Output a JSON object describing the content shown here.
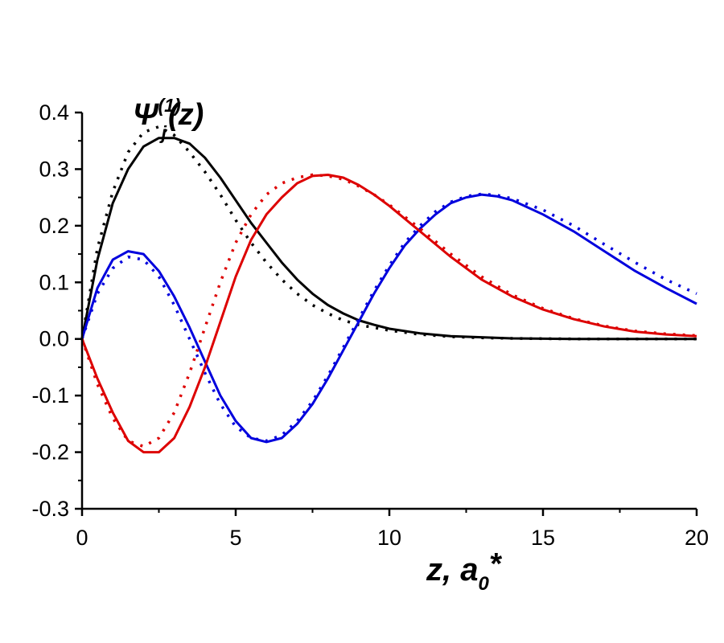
{
  "chart_data": {
    "type": "line",
    "title": "",
    "ylabel": {
      "main": "Ψ",
      "sup": "(1)",
      "sub": "j",
      "tail": "(z)"
    },
    "xlabel": {
      "main": "z, a",
      "sub": "0",
      "sup": "*"
    },
    "xlim": [
      0,
      20
    ],
    "ylim": [
      -0.3,
      0.4
    ],
    "x_ticks": [
      0,
      5,
      10,
      15,
      20
    ],
    "x_tick_labels": [
      "0",
      "5",
      "10",
      "15",
      "20"
    ],
    "y_ticks": [
      -0.3,
      -0.2,
      -0.1,
      0.0,
      0.1,
      0.2,
      0.3,
      0.4
    ],
    "y_tick_labels": [
      "-0.3",
      "-0.2",
      "-0.1",
      "0.0",
      "0.1",
      "0.2",
      "0.3",
      "0.4"
    ],
    "grid": false,
    "legend": "none",
    "series": [
      {
        "color": "#000000",
        "style": "solid",
        "points": [
          [
            0,
            0
          ],
          [
            0.5,
            0.14
          ],
          [
            1,
            0.24
          ],
          [
            1.5,
            0.3
          ],
          [
            2,
            0.34
          ],
          [
            2.5,
            0.355
          ],
          [
            3,
            0.355
          ],
          [
            3.5,
            0.345
          ],
          [
            4,
            0.32
          ],
          [
            4.5,
            0.285
          ],
          [
            5,
            0.245
          ],
          [
            5.5,
            0.205
          ],
          [
            6,
            0.17
          ],
          [
            6.5,
            0.135
          ],
          [
            7,
            0.105
          ],
          [
            7.5,
            0.08
          ],
          [
            8,
            0.06
          ],
          [
            8.5,
            0.045
          ],
          [
            9,
            0.033
          ],
          [
            9.5,
            0.025
          ],
          [
            10,
            0.018
          ],
          [
            11,
            0.01
          ],
          [
            12,
            0.005
          ],
          [
            13,
            0.003
          ],
          [
            14,
            0.001
          ],
          [
            16,
            0.0
          ],
          [
            20,
            0.0
          ]
        ]
      },
      {
        "color": "#000000",
        "style": "dotted",
        "points": [
          [
            0,
            0
          ],
          [
            0.5,
            0.16
          ],
          [
            1,
            0.26
          ],
          [
            1.5,
            0.33
          ],
          [
            2,
            0.365
          ],
          [
            2.5,
            0.375
          ],
          [
            3,
            0.36
          ],
          [
            3.5,
            0.33
          ],
          [
            4,
            0.295
          ],
          [
            4.5,
            0.255
          ],
          [
            5,
            0.21
          ],
          [
            5.5,
            0.17
          ],
          [
            6,
            0.135
          ],
          [
            6.5,
            0.105
          ],
          [
            7,
            0.08
          ],
          [
            7.5,
            0.06
          ],
          [
            8,
            0.045
          ],
          [
            8.5,
            0.033
          ],
          [
            9,
            0.025
          ],
          [
            10,
            0.015
          ],
          [
            11,
            0.008
          ],
          [
            12,
            0.004
          ],
          [
            13,
            0.002
          ],
          [
            14,
            0.001
          ],
          [
            16,
            0.0
          ],
          [
            20,
            0.0
          ]
        ]
      },
      {
        "color": "#0000dd",
        "style": "solid",
        "points": [
          [
            0,
            0
          ],
          [
            0.5,
            0.09
          ],
          [
            1,
            0.14
          ],
          [
            1.5,
            0.155
          ],
          [
            2,
            0.15
          ],
          [
            2.5,
            0.12
          ],
          [
            3,
            0.075
          ],
          [
            3.5,
            0.02
          ],
          [
            4,
            -0.04
          ],
          [
            4.5,
            -0.1
          ],
          [
            5,
            -0.145
          ],
          [
            5.5,
            -0.175
          ],
          [
            6,
            -0.182
          ],
          [
            6.5,
            -0.175
          ],
          [
            7,
            -0.15
          ],
          [
            7.5,
            -0.115
          ],
          [
            8,
            -0.07
          ],
          [
            8.5,
            -0.02
          ],
          [
            9,
            0.03
          ],
          [
            9.5,
            0.08
          ],
          [
            10,
            0.125
          ],
          [
            10.5,
            0.165
          ],
          [
            11,
            0.195
          ],
          [
            11.5,
            0.22
          ],
          [
            12,
            0.24
          ],
          [
            12.5,
            0.25
          ],
          [
            13,
            0.255
          ],
          [
            13.5,
            0.252
          ],
          [
            14,
            0.245
          ],
          [
            15,
            0.22
          ],
          [
            16,
            0.19
          ],
          [
            17,
            0.155
          ],
          [
            18,
            0.12
          ],
          [
            19,
            0.09
          ],
          [
            20,
            0.062
          ]
        ]
      },
      {
        "color": "#0000dd",
        "style": "dotted",
        "points": [
          [
            0,
            0
          ],
          [
            0.5,
            0.08
          ],
          [
            1,
            0.125
          ],
          [
            1.5,
            0.145
          ],
          [
            2,
            0.14
          ],
          [
            2.5,
            0.11
          ],
          [
            3,
            0.06
          ],
          [
            3.5,
            0.0
          ],
          [
            4,
            -0.06
          ],
          [
            4.5,
            -0.115
          ],
          [
            5,
            -0.155
          ],
          [
            5.5,
            -0.175
          ],
          [
            6,
            -0.18
          ],
          [
            6.5,
            -0.17
          ],
          [
            7,
            -0.145
          ],
          [
            7.5,
            -0.11
          ],
          [
            8,
            -0.065
          ],
          [
            8.5,
            -0.015
          ],
          [
            9,
            0.035
          ],
          [
            9.5,
            0.085
          ],
          [
            10,
            0.13
          ],
          [
            10.5,
            0.17
          ],
          [
            11,
            0.2
          ],
          [
            11.5,
            0.225
          ],
          [
            12,
            0.242
          ],
          [
            12.5,
            0.252
          ],
          [
            13,
            0.256
          ],
          [
            13.5,
            0.254
          ],
          [
            14,
            0.248
          ],
          [
            15,
            0.228
          ],
          [
            16,
            0.2
          ],
          [
            17,
            0.167
          ],
          [
            18,
            0.135
          ],
          [
            19,
            0.105
          ],
          [
            20,
            0.08
          ]
        ]
      },
      {
        "color": "#dd0000",
        "style": "solid",
        "points": [
          [
            0,
            0
          ],
          [
            0.5,
            -0.07
          ],
          [
            1,
            -0.13
          ],
          [
            1.5,
            -0.18
          ],
          [
            2,
            -0.2
          ],
          [
            2.5,
            -0.2
          ],
          [
            3,
            -0.175
          ],
          [
            3.5,
            -0.12
          ],
          [
            4,
            -0.05
          ],
          [
            4.5,
            0.03
          ],
          [
            5,
            0.11
          ],
          [
            5.5,
            0.175
          ],
          [
            6,
            0.22
          ],
          [
            6.5,
            0.25
          ],
          [
            7,
            0.275
          ],
          [
            7.5,
            0.288
          ],
          [
            8,
            0.29
          ],
          [
            8.5,
            0.285
          ],
          [
            9,
            0.272
          ],
          [
            9.5,
            0.255
          ],
          [
            10,
            0.235
          ],
          [
            11,
            0.19
          ],
          [
            12,
            0.145
          ],
          [
            13,
            0.105
          ],
          [
            14,
            0.075
          ],
          [
            15,
            0.052
          ],
          [
            16,
            0.035
          ],
          [
            17,
            0.022
          ],
          [
            18,
            0.013
          ],
          [
            19,
            0.008
          ],
          [
            20,
            0.005
          ]
        ]
      },
      {
        "color": "#dd0000",
        "style": "dotted",
        "points": [
          [
            0,
            0
          ],
          [
            0.5,
            -0.08
          ],
          [
            1,
            -0.14
          ],
          [
            1.5,
            -0.18
          ],
          [
            2,
            -0.19
          ],
          [
            2.5,
            -0.175
          ],
          [
            3,
            -0.13
          ],
          [
            3.5,
            -0.06
          ],
          [
            4,
            0.02
          ],
          [
            4.5,
            0.1
          ],
          [
            5,
            0.17
          ],
          [
            5.5,
            0.22
          ],
          [
            6,
            0.255
          ],
          [
            6.5,
            0.275
          ],
          [
            7,
            0.285
          ],
          [
            7.5,
            0.29
          ],
          [
            8,
            0.288
          ],
          [
            8.5,
            0.282
          ],
          [
            9,
            0.27
          ],
          [
            9.5,
            0.255
          ],
          [
            10,
            0.237
          ],
          [
            11,
            0.195
          ],
          [
            12,
            0.15
          ],
          [
            13,
            0.11
          ],
          [
            14,
            0.078
          ],
          [
            15,
            0.054
          ],
          [
            16,
            0.036
          ],
          [
            17,
            0.023
          ],
          [
            18,
            0.014
          ],
          [
            19,
            0.009
          ],
          [
            20,
            0.006
          ]
        ]
      }
    ]
  }
}
